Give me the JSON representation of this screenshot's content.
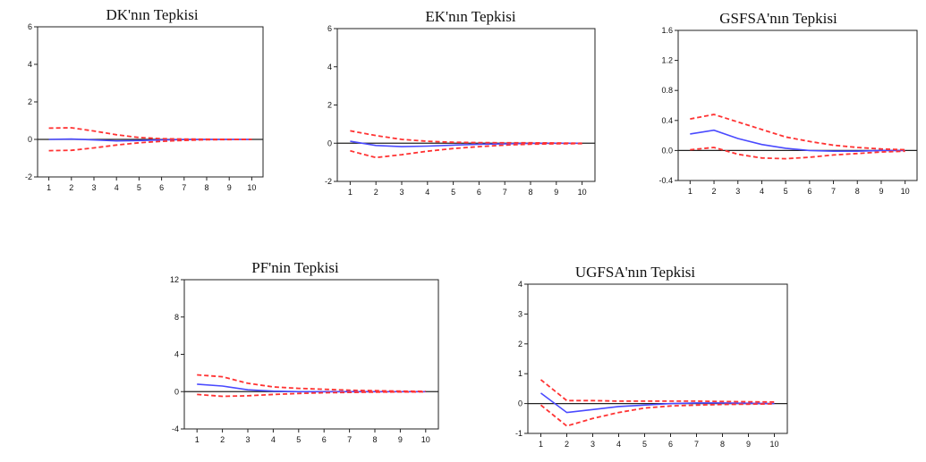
{
  "chart_data": [
    {
      "type": "line",
      "title": "DK'nın Tepkisi",
      "x": [
        1,
        2,
        3,
        4,
        5,
        6,
        7,
        8,
        9,
        10
      ],
      "ylim": [
        -2,
        6
      ],
      "yticks": [
        -2,
        0,
        2,
        4,
        6
      ],
      "ytick_labels": [
        "-2",
        "0",
        "2",
        "4",
        "6"
      ],
      "series": [
        {
          "role": "response",
          "color": "#4a4aff",
          "values": [
            0.0,
            0.02,
            -0.03,
            -0.08,
            -0.06,
            -0.03,
            -0.01,
            0.0,
            0.0,
            0.0
          ]
        },
        {
          "role": "upper",
          "color": "#ff3333",
          "values": [
            0.6,
            0.62,
            0.45,
            0.25,
            0.1,
            0.04,
            0.02,
            0.01,
            0.0,
            0.0
          ]
        },
        {
          "role": "lower",
          "color": "#ff3333",
          "values": [
            -0.6,
            -0.58,
            -0.45,
            -0.3,
            -0.18,
            -0.1,
            -0.05,
            -0.02,
            -0.01,
            0.0
          ]
        }
      ]
    },
    {
      "type": "line",
      "title": "EK'nın Tepkisi",
      "x": [
        1,
        2,
        3,
        4,
        5,
        6,
        7,
        8,
        9,
        10
      ],
      "ylim": [
        -2,
        6
      ],
      "yticks": [
        -2,
        0,
        2,
        4,
        6
      ],
      "ytick_labels": [
        "-2",
        "0",
        "2",
        "4",
        "6"
      ],
      "series": [
        {
          "role": "response",
          "color": "#4a4aff",
          "values": [
            0.1,
            -0.12,
            -0.18,
            -0.15,
            -0.1,
            -0.06,
            -0.03,
            -0.01,
            0.0,
            0.0
          ]
        },
        {
          "role": "upper",
          "color": "#ff3333",
          "values": [
            0.65,
            0.4,
            0.2,
            0.1,
            0.05,
            0.03,
            0.02,
            0.02,
            0.01,
            0.0
          ]
        },
        {
          "role": "lower",
          "color": "#ff3333",
          "values": [
            -0.4,
            -0.75,
            -0.6,
            -0.42,
            -0.28,
            -0.18,
            -0.1,
            -0.05,
            -0.03,
            -0.02
          ]
        }
      ]
    },
    {
      "type": "line",
      "title": "GSFSA'nın Tepkisi",
      "x": [
        1,
        2,
        3,
        4,
        5,
        6,
        7,
        8,
        9,
        10
      ],
      "ylim": [
        -0.4,
        1.6
      ],
      "yticks": [
        -0.4,
        0.0,
        0.4,
        0.8,
        1.2,
        1.6
      ],
      "ytick_labels": [
        "-0.4",
        "0.0",
        "0.4",
        "0.8",
        "1.2",
        "1.6"
      ],
      "series": [
        {
          "role": "response",
          "color": "#4a4aff",
          "values": [
            0.22,
            0.27,
            0.16,
            0.08,
            0.03,
            0.0,
            -0.01,
            -0.01,
            0.0,
            0.0
          ]
        },
        {
          "role": "upper",
          "color": "#ff3333",
          "values": [
            0.42,
            0.48,
            0.38,
            0.28,
            0.18,
            0.12,
            0.07,
            0.04,
            0.02,
            0.01
          ]
        },
        {
          "role": "lower",
          "color": "#ff3333",
          "values": [
            0.01,
            0.04,
            -0.05,
            -0.1,
            -0.11,
            -0.09,
            -0.06,
            -0.04,
            -0.02,
            -0.01
          ]
        }
      ]
    },
    {
      "type": "line",
      "title": "PF'nin Tepkisi",
      "x": [
        1,
        2,
        3,
        4,
        5,
        6,
        7,
        8,
        9,
        10
      ],
      "ylim": [
        -4,
        12
      ],
      "yticks": [
        -4,
        0,
        4,
        8,
        12
      ],
      "ytick_labels": [
        "-4",
        "0",
        "4",
        "8",
        "12"
      ],
      "series": [
        {
          "role": "response",
          "color": "#4a4aff",
          "values": [
            0.8,
            0.6,
            0.2,
            0.05,
            0.0,
            0.0,
            0.0,
            0.0,
            0.0,
            0.0
          ]
        },
        {
          "role": "upper",
          "color": "#ff3333",
          "values": [
            1.8,
            1.6,
            0.9,
            0.5,
            0.35,
            0.25,
            0.15,
            0.1,
            0.05,
            0.02
          ]
        },
        {
          "role": "lower",
          "color": "#ff3333",
          "values": [
            -0.3,
            -0.5,
            -0.45,
            -0.3,
            -0.2,
            -0.12,
            -0.08,
            -0.05,
            -0.03,
            -0.02
          ]
        }
      ]
    },
    {
      "type": "line",
      "title": "UGFSA'nın Tepkisi",
      "x": [
        1,
        2,
        3,
        4,
        5,
        6,
        7,
        8,
        9,
        10
      ],
      "ylim": [
        -1,
        4
      ],
      "yticks": [
        -1,
        0,
        1,
        2,
        3,
        4
      ],
      "ytick_labels": [
        "-1",
        "0",
        "1",
        "2",
        "3",
        "4"
      ],
      "series": [
        {
          "role": "response",
          "color": "#4a4aff",
          "values": [
            0.35,
            -0.3,
            -0.2,
            -0.1,
            -0.05,
            0.0,
            0.02,
            0.02,
            0.01,
            0.0
          ]
        },
        {
          "role": "upper",
          "color": "#ff3333",
          "values": [
            0.8,
            0.1,
            0.1,
            0.08,
            0.08,
            0.08,
            0.08,
            0.07,
            0.06,
            0.05
          ]
        },
        {
          "role": "lower",
          "color": "#ff3333",
          "values": [
            -0.05,
            -0.75,
            -0.5,
            -0.3,
            -0.15,
            -0.08,
            -0.05,
            -0.03,
            -0.02,
            -0.01
          ]
        }
      ]
    }
  ]
}
